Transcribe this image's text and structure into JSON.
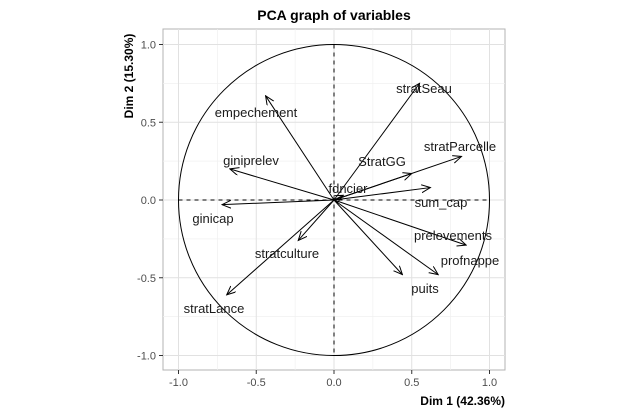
{
  "chart_data": {
    "type": "scatter",
    "title": "PCA graph of variables",
    "xlabel": "Dim 1 (42.36%)",
    "ylabel": "Dim 2 (15.30%)",
    "xlim": [
      -1.1,
      1.1
    ],
    "ylim": [
      -1.1,
      1.1
    ],
    "x_ticks": [
      "-1.0",
      "-0.5",
      "0.0",
      "0.5",
      "1.0"
    ],
    "y_ticks": [
      "-1.0",
      "-0.5",
      "0.0",
      "0.5",
      "1.0"
    ],
    "grid": true,
    "unit_circle": true,
    "variables": [
      {
        "name": "stratSeau",
        "x": 0.55,
        "y": 0.75
      },
      {
        "name": "empechement",
        "x": -0.44,
        "y": 0.67
      },
      {
        "name": "stratParcelle",
        "x": 0.82,
        "y": 0.28
      },
      {
        "name": "giniprelev",
        "x": -0.67,
        "y": 0.2
      },
      {
        "name": "StratGG",
        "x": 0.5,
        "y": 0.17
      },
      {
        "name": "fdncier",
        "x": 0.06,
        "y": 0.03
      },
      {
        "name": "sum_cap",
        "x": 0.62,
        "y": 0.08
      },
      {
        "name": "ginicap",
        "x": -0.72,
        "y": -0.03
      },
      {
        "name": "prelevements",
        "x": 0.85,
        "y": -0.29
      },
      {
        "name": "stratculture",
        "x": -0.23,
        "y": -0.26
      },
      {
        "name": "profnappe",
        "x": 0.67,
        "y": -0.48
      },
      {
        "name": "puits",
        "x": 0.44,
        "y": -0.48
      },
      {
        "name": "stratLance",
        "x": -0.69,
        "y": -0.61
      }
    ]
  }
}
